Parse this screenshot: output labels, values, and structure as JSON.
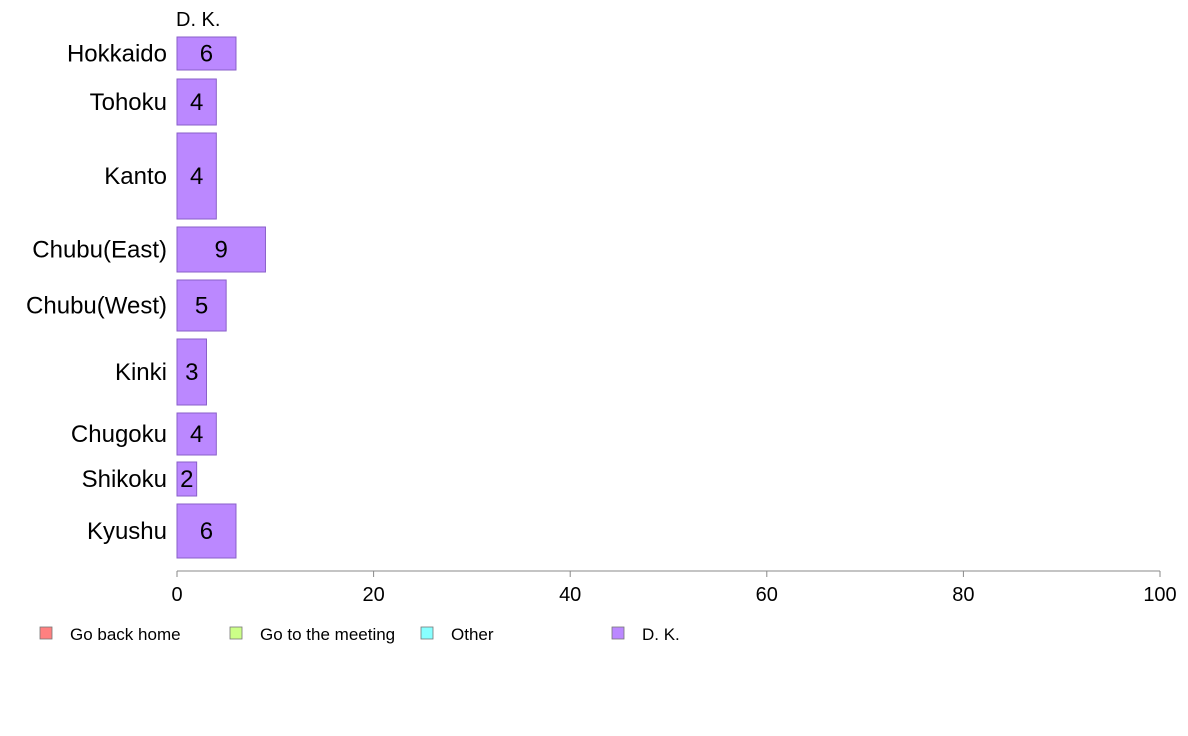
{
  "chart_data": {
    "type": "bar",
    "orientation": "horizontal",
    "series_title": "D. K.",
    "categories": [
      "Hokkaido",
      "Tohoku",
      "Kanto",
      "Chubu(East)",
      "Chubu(West)",
      "Kinki",
      "Chugoku",
      "Shikoku",
      "Kyushu"
    ],
    "values": [
      6,
      4,
      4,
      9,
      5,
      3,
      4,
      2,
      6
    ],
    "value_labels": [
      "6",
      "4",
      "4",
      "9",
      "5",
      "3",
      "4",
      "2",
      "6"
    ],
    "bar_color": "#bb88ff",
    "bar_stroke": "#8a5fc9",
    "xlim": [
      0,
      100
    ],
    "xticks": [
      0,
      20,
      40,
      60,
      80,
      100
    ],
    "xtick_labels": [
      "0",
      "20",
      "40",
      "60",
      "80",
      "100"
    ],
    "grid": false,
    "legend_position": "bottom",
    "legend": [
      {
        "label": "Go back home",
        "color": "#ff8080"
      },
      {
        "label": "Go to the meeting",
        "color": "#ccff88"
      },
      {
        "label": "Other",
        "color": "#88ffff"
      },
      {
        "label": "D. K.",
        "color": "#bb88ff"
      }
    ]
  }
}
